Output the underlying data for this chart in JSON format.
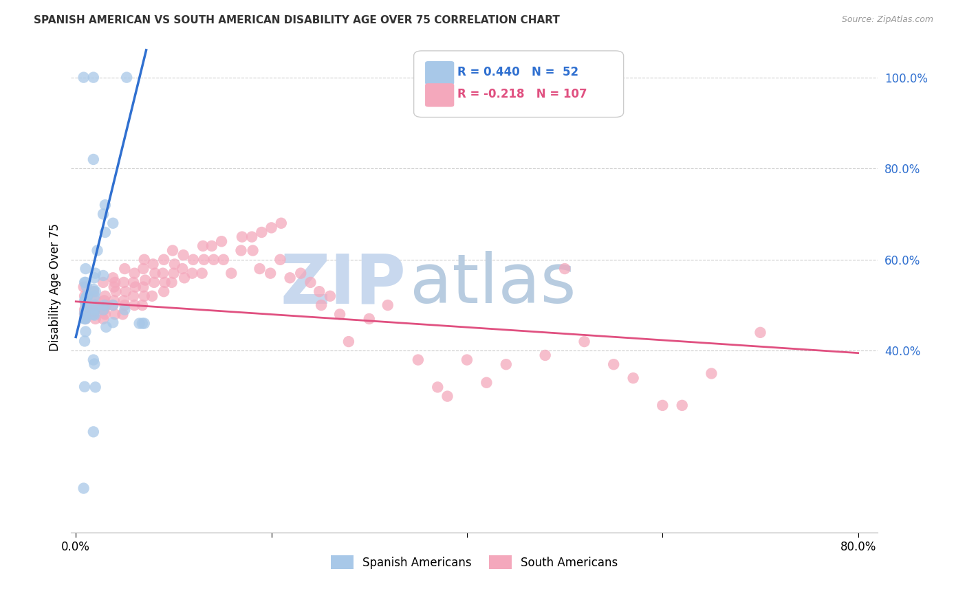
{
  "title": "SPANISH AMERICAN VS SOUTH AMERICAN DISABILITY AGE OVER 75 CORRELATION CHART",
  "source": "Source: ZipAtlas.com",
  "ylabel": "Disability Age Over 75",
  "ytick_vals": [
    0.4,
    0.6,
    0.8,
    1.0
  ],
  "ytick_labels": [
    "40.0%",
    "60.0%",
    "80.0%",
    "100.0%"
  ],
  "xtick_vals": [
    0.0,
    0.2,
    0.4,
    0.6,
    0.8
  ],
  "xtick_labels": [
    "0.0%",
    "",
    "",
    "",
    "80.0%"
  ],
  "xlim": [
    -0.005,
    0.82
  ],
  "ylim": [
    0.0,
    1.08
  ],
  "blue_R": 0.44,
  "blue_N": 52,
  "pink_R": -0.218,
  "pink_N": 107,
  "blue_scatter_color": "#a8c8e8",
  "pink_scatter_color": "#f4a8bc",
  "blue_line_color": "#3070d0",
  "pink_line_color": "#e05080",
  "legend_blue_color": "#3070d0",
  "legend_pink_color": "#e05080",
  "watermark_zip_color": "#c8d8ee",
  "watermark_atlas_color": "#b8cce0",
  "background_color": "#ffffff",
  "grid_color": "#cccccc",
  "blue_line_x0": 0.0,
  "blue_line_y0": 0.43,
  "blue_line_x1": 0.072,
  "blue_line_y1": 1.06,
  "pink_line_x0": 0.0,
  "pink_line_y0": 0.508,
  "pink_line_x1": 0.8,
  "pink_line_y1": 0.395,
  "blue_points_x": [
    0.008,
    0.018,
    0.052,
    0.018,
    0.03,
    0.028,
    0.038,
    0.03,
    0.022,
    0.01,
    0.02,
    0.019,
    0.028,
    0.009,
    0.01,
    0.011,
    0.018,
    0.02,
    0.019,
    0.012,
    0.011,
    0.01,
    0.01,
    0.009,
    0.01,
    0.02,
    0.029,
    0.038,
    0.05,
    0.019,
    0.028,
    0.01,
    0.009,
    0.018,
    0.019,
    0.009,
    0.009,
    0.009,
    0.01,
    0.038,
    0.065,
    0.068,
    0.07,
    0.031,
    0.01,
    0.009,
    0.018,
    0.019,
    0.009,
    0.02,
    0.018,
    0.008
  ],
  "blue_points_y": [
    1.0,
    1.0,
    1.0,
    0.82,
    0.72,
    0.7,
    0.68,
    0.66,
    0.62,
    0.58,
    0.57,
    0.56,
    0.565,
    0.55,
    0.55,
    0.54,
    0.535,
    0.53,
    0.52,
    0.52,
    0.52,
    0.515,
    0.51,
    0.51,
    0.5,
    0.5,
    0.5,
    0.5,
    0.49,
    0.49,
    0.49,
    0.488,
    0.483,
    0.48,
    0.478,
    0.473,
    0.47,
    0.47,
    0.47,
    0.462,
    0.46,
    0.46,
    0.46,
    0.452,
    0.442,
    0.421,
    0.38,
    0.371,
    0.321,
    0.32,
    0.222,
    0.098
  ],
  "pink_points_x": [
    0.008,
    0.009,
    0.01,
    0.011,
    0.009,
    0.01,
    0.01,
    0.009,
    0.01,
    0.018,
    0.02,
    0.019,
    0.02,
    0.019,
    0.018,
    0.02,
    0.028,
    0.03,
    0.029,
    0.031,
    0.029,
    0.03,
    0.028,
    0.038,
    0.04,
    0.039,
    0.041,
    0.039,
    0.038,
    0.04,
    0.05,
    0.049,
    0.051,
    0.049,
    0.05,
    0.048,
    0.06,
    0.059,
    0.061,
    0.059,
    0.06,
    0.07,
    0.069,
    0.071,
    0.069,
    0.07,
    0.068,
    0.079,
    0.081,
    0.08,
    0.078,
    0.09,
    0.089,
    0.091,
    0.09,
    0.099,
    0.101,
    0.1,
    0.098,
    0.11,
    0.109,
    0.111,
    0.12,
    0.119,
    0.13,
    0.131,
    0.129,
    0.139,
    0.141,
    0.149,
    0.151,
    0.159,
    0.17,
    0.169,
    0.18,
    0.181,
    0.19,
    0.188,
    0.2,
    0.199,
    0.21,
    0.209,
    0.219,
    0.23,
    0.24,
    0.249,
    0.251,
    0.26,
    0.27,
    0.279,
    0.3,
    0.319,
    0.35,
    0.37,
    0.38,
    0.4,
    0.42,
    0.44,
    0.48,
    0.5,
    0.52,
    0.55,
    0.57,
    0.6,
    0.62,
    0.65,
    0.7
  ],
  "pink_points_y": [
    0.54,
    0.52,
    0.51,
    0.5,
    0.49,
    0.49,
    0.48,
    0.48,
    0.47,
    0.53,
    0.51,
    0.5,
    0.49,
    0.485,
    0.48,
    0.47,
    0.55,
    0.52,
    0.51,
    0.5,
    0.49,
    0.48,
    0.47,
    0.56,
    0.55,
    0.54,
    0.53,
    0.51,
    0.5,
    0.48,
    0.58,
    0.55,
    0.53,
    0.51,
    0.5,
    0.48,
    0.57,
    0.55,
    0.54,
    0.52,
    0.5,
    0.6,
    0.58,
    0.555,
    0.54,
    0.52,
    0.5,
    0.59,
    0.57,
    0.55,
    0.52,
    0.6,
    0.57,
    0.55,
    0.53,
    0.62,
    0.59,
    0.57,
    0.55,
    0.61,
    0.58,
    0.56,
    0.6,
    0.57,
    0.63,
    0.6,
    0.57,
    0.63,
    0.6,
    0.64,
    0.6,
    0.57,
    0.65,
    0.62,
    0.65,
    0.62,
    0.66,
    0.58,
    0.67,
    0.57,
    0.68,
    0.6,
    0.56,
    0.57,
    0.55,
    0.53,
    0.5,
    0.52,
    0.48,
    0.42,
    0.47,
    0.5,
    0.38,
    0.32,
    0.3,
    0.38,
    0.33,
    0.37,
    0.39,
    0.58,
    0.42,
    0.37,
    0.34,
    0.28,
    0.28,
    0.35,
    0.44
  ]
}
